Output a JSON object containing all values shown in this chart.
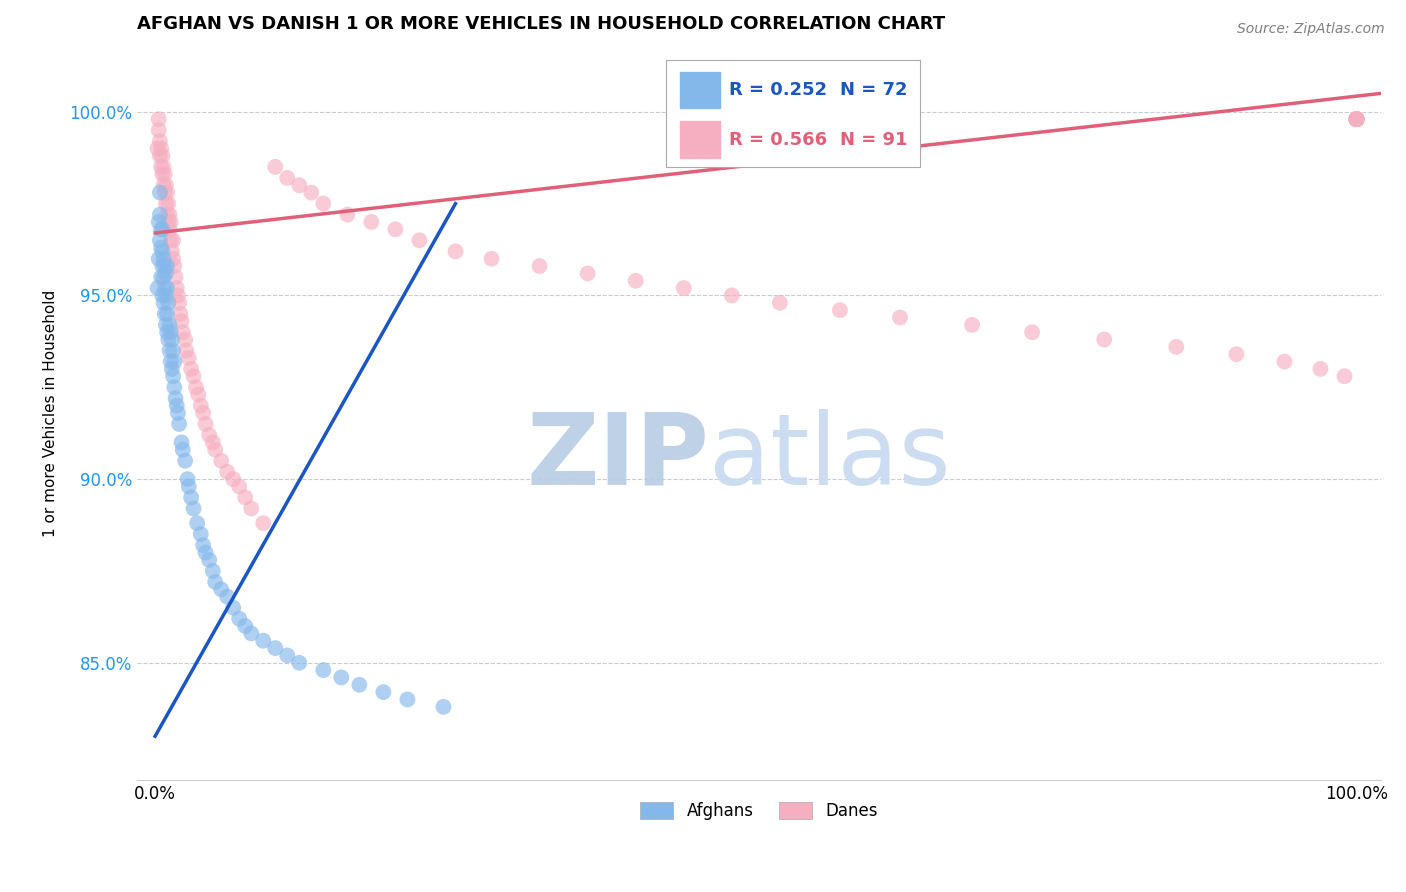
{
  "title": "AFGHAN VS DANISH 1 OR MORE VEHICLES IN HOUSEHOLD CORRELATION CHART",
  "source_text": "Source: ZipAtlas.com",
  "ylabel": "1 or more Vehicles in Household",
  "afghan_color": "#85b8ea",
  "dane_color": "#f5afc0",
  "afghan_line_color": "#1a56c4",
  "dane_line_color": "#e0607a",
  "watermark_zip": "ZIP",
  "watermark_atlas": "atlas",
  "watermark_color_zip": "#b8cce4",
  "watermark_color_atlas": "#c8daf0",
  "legend_R_afghan": "0.252",
  "legend_N_afghan": "72",
  "legend_R_dane": "0.566",
  "legend_N_dane": "91",
  "xlim": [
    -0.015,
    1.02
  ],
  "ylim": [
    0.818,
    1.018
  ],
  "y_ticks": [
    0.85,
    0.9,
    0.95,
    1.0
  ],
  "y_tick_labels": [
    "85.0%",
    "90.0%",
    "95.0%",
    "100.0%"
  ],
  "x_tick_labels": [
    "0.0%",
    "100.0%"
  ],
  "afghan_x": [
    0.002,
    0.003,
    0.003,
    0.004,
    0.004,
    0.004,
    0.005,
    0.005,
    0.005,
    0.006,
    0.006,
    0.006,
    0.006,
    0.007,
    0.007,
    0.007,
    0.008,
    0.008,
    0.008,
    0.009,
    0.009,
    0.009,
    0.01,
    0.01,
    0.01,
    0.01,
    0.011,
    0.011,
    0.012,
    0.012,
    0.013,
    0.013,
    0.014,
    0.014,
    0.015,
    0.015,
    0.016,
    0.016,
    0.017,
    0.018,
    0.019,
    0.02,
    0.022,
    0.023,
    0.025,
    0.027,
    0.028,
    0.03,
    0.032,
    0.035,
    0.038,
    0.04,
    0.042,
    0.045,
    0.048,
    0.05,
    0.055,
    0.06,
    0.065,
    0.07,
    0.075,
    0.08,
    0.09,
    0.1,
    0.11,
    0.12,
    0.14,
    0.155,
    0.17,
    0.19,
    0.21,
    0.24
  ],
  "afghan_y": [
    0.952,
    0.96,
    0.97,
    0.965,
    0.972,
    0.978,
    0.955,
    0.963,
    0.968,
    0.95,
    0.958,
    0.962,
    0.968,
    0.948,
    0.955,
    0.96,
    0.945,
    0.952,
    0.958,
    0.942,
    0.95,
    0.956,
    0.94,
    0.945,
    0.952,
    0.958,
    0.938,
    0.948,
    0.935,
    0.942,
    0.932,
    0.94,
    0.93,
    0.938,
    0.928,
    0.935,
    0.925,
    0.932,
    0.922,
    0.92,
    0.918,
    0.915,
    0.91,
    0.908,
    0.905,
    0.9,
    0.898,
    0.895,
    0.892,
    0.888,
    0.885,
    0.882,
    0.88,
    0.878,
    0.875,
    0.872,
    0.87,
    0.868,
    0.865,
    0.862,
    0.86,
    0.858,
    0.856,
    0.854,
    0.852,
    0.85,
    0.848,
    0.846,
    0.844,
    0.842,
    0.84,
    0.838
  ],
  "dane_x": [
    0.002,
    0.003,
    0.003,
    0.004,
    0.004,
    0.005,
    0.005,
    0.006,
    0.006,
    0.007,
    0.007,
    0.008,
    0.008,
    0.009,
    0.009,
    0.01,
    0.01,
    0.011,
    0.011,
    0.012,
    0.012,
    0.013,
    0.013,
    0.014,
    0.015,
    0.015,
    0.016,
    0.017,
    0.018,
    0.019,
    0.02,
    0.021,
    0.022,
    0.023,
    0.025,
    0.026,
    0.028,
    0.03,
    0.032,
    0.034,
    0.036,
    0.038,
    0.04,
    0.042,
    0.045,
    0.048,
    0.05,
    0.055,
    0.06,
    0.065,
    0.07,
    0.075,
    0.08,
    0.09,
    0.1,
    0.11,
    0.12,
    0.13,
    0.14,
    0.16,
    0.18,
    0.2,
    0.22,
    0.25,
    0.28,
    0.32,
    0.36,
    0.4,
    0.44,
    0.48,
    0.52,
    0.57,
    0.62,
    0.68,
    0.73,
    0.79,
    0.85,
    0.9,
    0.94,
    0.97,
    0.99,
    1.0,
    1.0,
    1.0,
    1.0,
    1.0,
    1.0,
    1.0,
    1.0,
    1.0,
    1.0,
    1.0
  ],
  "dane_y": [
    0.99,
    0.995,
    0.998,
    0.988,
    0.992,
    0.985,
    0.99,
    0.983,
    0.988,
    0.98,
    0.985,
    0.978,
    0.983,
    0.975,
    0.98,
    0.972,
    0.978,
    0.97,
    0.975,
    0.968,
    0.972,
    0.965,
    0.97,
    0.962,
    0.96,
    0.965,
    0.958,
    0.955,
    0.952,
    0.95,
    0.948,
    0.945,
    0.943,
    0.94,
    0.938,
    0.935,
    0.933,
    0.93,
    0.928,
    0.925,
    0.923,
    0.92,
    0.918,
    0.915,
    0.912,
    0.91,
    0.908,
    0.905,
    0.902,
    0.9,
    0.898,
    0.895,
    0.892,
    0.888,
    0.985,
    0.982,
    0.98,
    0.978,
    0.975,
    0.972,
    0.97,
    0.968,
    0.965,
    0.962,
    0.96,
    0.958,
    0.956,
    0.954,
    0.952,
    0.95,
    0.948,
    0.946,
    0.944,
    0.942,
    0.94,
    0.938,
    0.936,
    0.934,
    0.932,
    0.93,
    0.928,
    0.998,
    0.998,
    0.998,
    0.998,
    0.998,
    0.998,
    0.998,
    0.998,
    0.998,
    0.998,
    0.998
  ]
}
